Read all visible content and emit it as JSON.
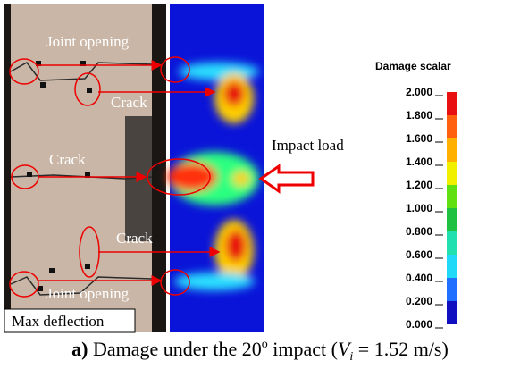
{
  "photo": {
    "labels": {
      "joint_opening_top": "Joint opening",
      "crack_upper": "Crack",
      "crack_middle": "Crack",
      "crack_lower": "Crack",
      "joint_opening_bottom": "Joint opening",
      "max_deflection": "Max deflection"
    }
  },
  "simulation": {
    "impact_label": "Impact load"
  },
  "legend": {
    "title": "Damage scalar",
    "ticks": [
      "2.000",
      "1.800",
      "1.600",
      "1.400",
      "1.200",
      "1.000",
      "0.800",
      "0.600",
      "0.400",
      "0.200",
      "0.000"
    ]
  },
  "caption": {
    "label": "a)",
    "text_before": " Damage under the 20",
    "degree": "o",
    "text_mid": " impact (",
    "variable": "V",
    "subscript": "i",
    "text_after": " = 1.52 m/s)"
  }
}
